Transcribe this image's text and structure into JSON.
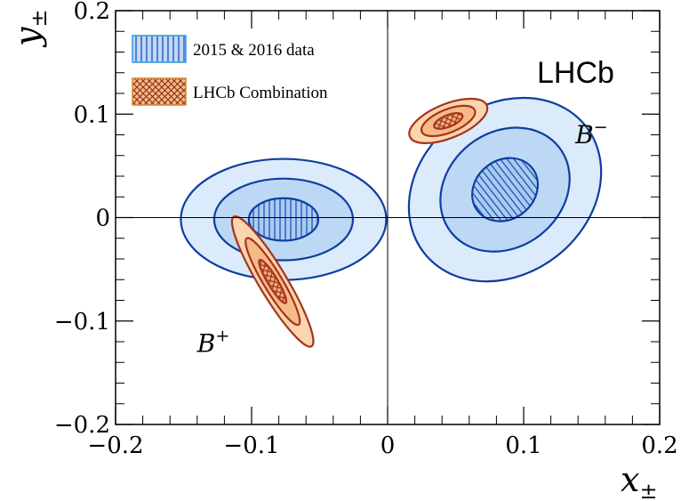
{
  "chart_data": {
    "type": "contour",
    "x_axis": {
      "label_main": "x",
      "label_sub": "±",
      "ticks": [
        {
          "value": -0.2,
          "label": "−0.2"
        },
        {
          "value": -0.1,
          "label": "−0.1"
        },
        {
          "value": 0,
          "label": "0"
        },
        {
          "value": 0.1,
          "label": "0.1"
        },
        {
          "value": 0.2,
          "label": "0.2"
        }
      ],
      "range": [
        -0.2,
        0.2
      ]
    },
    "y_axis": {
      "label_main": "y",
      "label_sub": "±",
      "ticks": [
        {
          "value": -0.2,
          "label": "−0.2"
        },
        {
          "value": -0.1,
          "label": "−0.1"
        },
        {
          "value": 0,
          "label": "0"
        },
        {
          "value": 0.1,
          "label": "0.1"
        },
        {
          "value": 0.2,
          "label": "0.2"
        }
      ],
      "range": [
        -0.2,
        0.2
      ]
    },
    "experiment_label": "LHCb",
    "legend": [
      {
        "label": "2015 & 2016 data",
        "style": "blue-hatched"
      },
      {
        "label": "LHCb Combination",
        "style": "orange-crosshatched"
      }
    ],
    "reference_lines": {
      "x": 0,
      "y": 0
    },
    "groups": [
      {
        "label_main": "B",
        "label_sup": "+",
        "label_at": {
          "x": -0.14,
          "y": -0.13
        },
        "series": [
          {
            "source": "2015 & 2016 data",
            "contours": [
              {
                "cx": -0.0765,
                "cy": -0.0018,
                "rx": 0.0755,
                "ry": 0.0585,
                "angle_deg": 0
              },
              {
                "cx": -0.0765,
                "cy": -0.0018,
                "rx": 0.051,
                "ry": 0.0395,
                "angle_deg": 0
              },
              {
                "cx": -0.0765,
                "cy": -0.0018,
                "rx": 0.0255,
                "ry": 0.0205,
                "angle_deg": 0
              }
            ]
          },
          {
            "source": "LHCb Combination",
            "contours": [
              {
                "cx": -0.0845,
                "cy": -0.0618,
                "rx": 0.0555,
                "ry": 0.0135,
                "angle_deg": 59
              },
              {
                "cx": -0.0845,
                "cy": -0.0618,
                "rx": 0.037,
                "ry": 0.009,
                "angle_deg": 59
              },
              {
                "cx": -0.0845,
                "cy": -0.0618,
                "rx": 0.0185,
                "ry": 0.0048,
                "angle_deg": 59
              }
            ]
          }
        ]
      },
      {
        "label_main": "B",
        "label_sup": "−",
        "label_at": {
          "x": 0.138,
          "y": 0.072
        },
        "series": [
          {
            "source": "2015 & 2016 data",
            "contours": [
              {
                "cx": 0.0863,
                "cy": 0.027,
                "rx": 0.0755,
                "ry": 0.0815,
                "angle_deg": -38
              },
              {
                "cx": 0.0863,
                "cy": 0.027,
                "rx": 0.0505,
                "ry": 0.0555,
                "angle_deg": -38
              },
              {
                "cx": 0.0863,
                "cy": 0.027,
                "rx": 0.0255,
                "ry": 0.0285,
                "angle_deg": -38
              }
            ]
          },
          {
            "source": "LHCb Combination",
            "contours": [
              {
                "cx": 0.0446,
                "cy": 0.0934,
                "rx": 0.0305,
                "ry": 0.0165,
                "angle_deg": -22
              },
              {
                "cx": 0.0446,
                "cy": 0.0934,
                "rx": 0.021,
                "ry": 0.0112,
                "angle_deg": -22
              },
              {
                "cx": 0.0446,
                "cy": 0.0934,
                "rx": 0.0112,
                "ry": 0.0056,
                "angle_deg": -22
              }
            ]
          }
        ]
      }
    ]
  },
  "colors": {
    "blue_edge": "#0d3ea0",
    "blue_fill_outer": "#dcebfb",
    "blue_fill_mid": "#bcd8f5",
    "blue_fill_inner": "#a9ccf0",
    "blue_hatch": "#1646b0",
    "orange_edge": "#a6341c",
    "orange_fill_outer": "#fbd5ae",
    "orange_fill_mid": "#f6ba88",
    "orange_fill_inner": "#f3a974",
    "orange_hatch": "#8e2a12",
    "legend_blue_edge": "#3d9ede",
    "legend_orange_edge": "#d88a3a"
  }
}
